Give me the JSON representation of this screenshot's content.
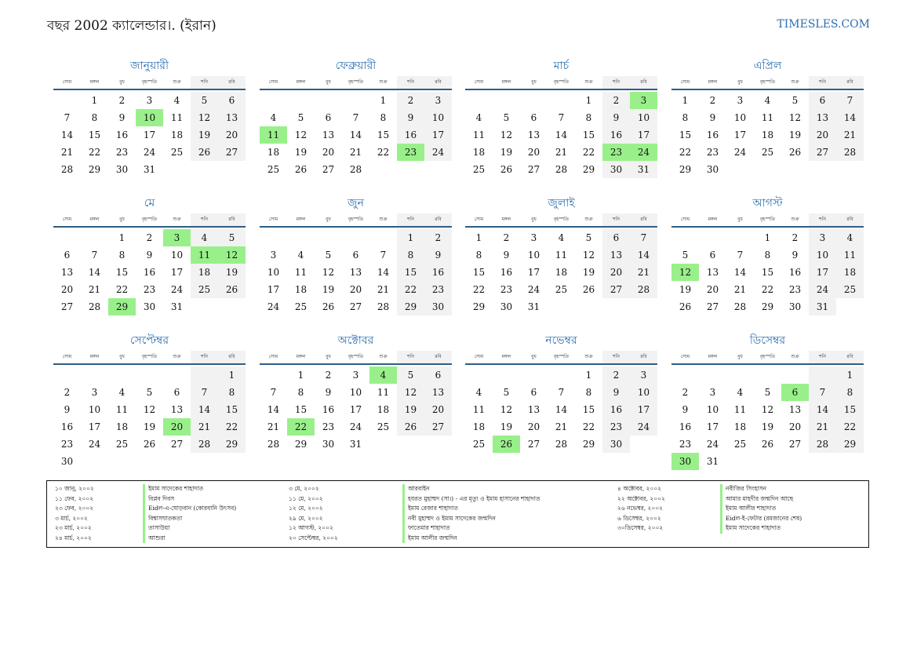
{
  "header": {
    "title": "বছর 2002 ক্যালেন্ডার।. (ইরান)",
    "brand": "TIMESLES.COM"
  },
  "weekdays": [
    "সোম",
    "মঙ্গল",
    "বুধ",
    "বৃহস্পতি",
    "শুক্র",
    "শনি",
    "রবি"
  ],
  "months": [
    {
      "name": "জানুয়ারী",
      "offset": 1,
      "days": 31,
      "holidays": [
        10
      ]
    },
    {
      "name": "ফেব্রুয়ারী",
      "offset": 4,
      "days": 28,
      "holidays": [
        11,
        23
      ]
    },
    {
      "name": "মার্চ",
      "offset": 4,
      "days": 31,
      "holidays": [
        3,
        23,
        24
      ]
    },
    {
      "name": "এপ্রিল",
      "offset": 0,
      "days": 30,
      "holidays": []
    },
    {
      "name": "মে",
      "offset": 2,
      "days": 31,
      "holidays": [
        3,
        11,
        12,
        29
      ]
    },
    {
      "name": "জুন",
      "offset": 5,
      "days": 30,
      "holidays": []
    },
    {
      "name": "জুলাই",
      "offset": 0,
      "days": 31,
      "holidays": []
    },
    {
      "name": "আগস্ট",
      "offset": 3,
      "days": 31,
      "holidays": [
        12
      ]
    },
    {
      "name": "সেপ্টেম্বর",
      "offset": 6,
      "days": 30,
      "holidays": [
        20
      ]
    },
    {
      "name": "অক্টোবর",
      "offset": 1,
      "days": 31,
      "holidays": [
        4,
        22
      ]
    },
    {
      "name": "নভেম্বর",
      "offset": 4,
      "days": 30,
      "holidays": [
        26
      ]
    },
    {
      "name": "ডিসেম্বর",
      "offset": 6,
      "days": 31,
      "holidays": [
        6,
        30
      ]
    }
  ],
  "holidays_list": [
    [
      {
        "date": "১০ জানু, ২০০২",
        "name": "ইমাম সাদেকের শাহাদাত"
      },
      {
        "date": "১১ ফেব, ২০০২",
        "name": "বিপ্লব দিবস"
      },
      {
        "date": "২৩ ফেব, ২০০২",
        "name": "Eidল-এ-ঘোড়বান (কোরবানি উৎসব)"
      },
      {
        "date": "৩ মার্চ, ২০০২",
        "name": "বিশ্বাসঘাতকতা"
      },
      {
        "date": "২৩ মার্চ, ২০০২",
        "name": "তাসাউয়া"
      },
      {
        "date": "২৪ মার্চ, ২০০২",
        "name": "আশুরা"
      }
    ],
    [
      {
        "date": "৩ মে, ২০০২",
        "name": "আরবাইন"
      },
      {
        "date": "১১ মে, ২০০২",
        "name": "হযরত মুহাম্মদ (সা।) - এর মৃত্যু ও ইমাম হাসানের শাহাদাত"
      },
      {
        "date": "১২ মে, ২০০২",
        "name": "ইমাম রেজার শাহাদাত"
      },
      {
        "date": "২৯ মে, ২০০২",
        "name": "নবী মুহাম্মদ ও ইমাম সাদেকের জন্মদিন"
      },
      {
        "date": "১২ আগস্ট, ২০০২",
        "name": "ফাতেমার শাহাদাত"
      },
      {
        "date": "২০ সেপ্টেম্বর, ২০০২",
        "name": "ইমাম আলীর জন্মদিন"
      }
    ],
    [
      {
        "date": "৪ অক্টোবর, ২০০২",
        "name": "নবীজির সিংহাসন"
      },
      {
        "date": "২২ অক্টোবর, ২০০২",
        "name": "আমার মাহদীর জন্মদিন আছে"
      },
      {
        "date": "২৬ নভেম্বর, ২০০২",
        "name": "ইমাম আলীর শাহাদাত"
      },
      {
        "date": "৬ ডিসেম্বর, ২০০২",
        "name": "Eidল-ই-ফেটার (রমজানের শেষ)"
      },
      {
        "date": "৩০ডিসেম্বর, ২০০২",
        "name": "ইমাম সাদেকের শাহাদাত"
      }
    ]
  ]
}
